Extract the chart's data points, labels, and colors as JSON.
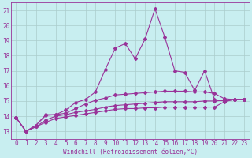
{
  "xlabel": "Windchill (Refroidissement éolien,°C)",
  "bg_color": "#c8eef0",
  "grid_color": "#aacccc",
  "line_color": "#993399",
  "xlim": [
    -0.5,
    23.5
  ],
  "ylim": [
    12.5,
    21.5
  ],
  "yticks": [
    13,
    14,
    15,
    16,
    17,
    18,
    19,
    20,
    21
  ],
  "xticks": [
    0,
    1,
    2,
    3,
    4,
    5,
    6,
    7,
    8,
    9,
    10,
    11,
    12,
    13,
    14,
    15,
    16,
    17,
    18,
    19,
    20,
    21,
    22,
    23
  ],
  "series1_y": [
    13.9,
    13.0,
    13.4,
    14.1,
    14.1,
    14.4,
    14.9,
    15.1,
    15.6,
    17.1,
    18.5,
    18.8,
    17.8,
    19.1,
    21.1,
    19.2,
    17.0,
    16.9,
    15.7,
    17.0,
    15.1,
    15.0,
    15.1,
    15.1
  ],
  "series2_y": [
    13.9,
    13.0,
    13.4,
    14.05,
    14.1,
    14.2,
    14.5,
    14.8,
    15.05,
    15.2,
    15.4,
    15.45,
    15.5,
    15.55,
    15.6,
    15.65,
    15.65,
    15.65,
    15.6,
    15.6,
    15.5,
    15.15,
    15.1,
    15.1
  ],
  "series3_y": [
    13.9,
    13.0,
    13.3,
    13.75,
    14.0,
    14.1,
    14.25,
    14.35,
    14.45,
    14.6,
    14.7,
    14.75,
    14.8,
    14.85,
    14.9,
    14.95,
    14.95,
    14.95,
    14.95,
    15.0,
    15.0,
    15.05,
    15.1,
    15.1
  ],
  "series4_y": [
    13.9,
    13.0,
    13.3,
    13.6,
    13.85,
    13.95,
    14.05,
    14.15,
    14.25,
    14.35,
    14.45,
    14.5,
    14.5,
    14.55,
    14.55,
    14.6,
    14.6,
    14.6,
    14.6,
    14.6,
    14.6,
    14.95,
    15.1,
    15.1
  ],
  "xlabel_fontsize": 5.5,
  "tick_fontsize": 5.5,
  "marker_size": 2.0,
  "line_width": 0.8
}
